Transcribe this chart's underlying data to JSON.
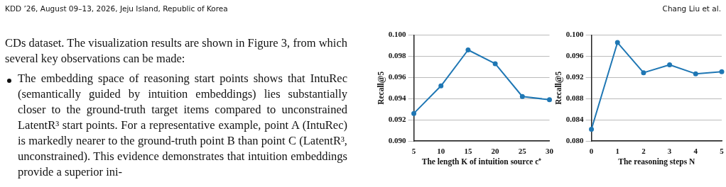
{
  "chart_data": [
    {
      "type": "other",
      "annotations": [
        "KDD ’26, August 09–13, 2026, Jeju Island, Republic of Korea",
        "Chang Liu et al.",
        "CDs dataset. The visualization results are shown in Figure 3, from which several key observations can be made:",
        "The embedding space of reasoning start points shows that IntuRec (semantically guided by intuition embeddings) lies substantially closer to the ground-truth target items compared to unconstrained LatentR³ start points. For a representative example, point A (IntuRec) is markedly nearer to the ground-truth point B than point C (LatentR³, unconstrained). This evidence demonstrates that intuition embeddings provide a superior ini-"
      ]
    },
    {
      "type": "line",
      "xlabel": "The length K of intuition source c⁺",
      "ylabel": "Recall@5",
      "categories": [
        "5",
        "10",
        "15",
        "20",
        "25",
        "30"
      ],
      "series": [
        {
          "color": "#1f77b4",
          "values": [
            0.0926,
            0.0952,
            0.0986,
            0.0973,
            0.0942,
            0.0939
          ]
        }
      ],
      "ylim": [
        0.09,
        0.1
      ],
      "yticks": [
        {
          "value": 0.09,
          "label": "0.090"
        },
        {
          "value": 0.092,
          "label": "0.092"
        },
        {
          "value": 0.094,
          "label": "0.094"
        },
        {
          "value": 0.096,
          "label": "0.096"
        },
        {
          "value": 0.098,
          "label": "0.098"
        },
        {
          "value": 0.1,
          "label": "0.100"
        }
      ],
      "grid": "y",
      "marker": "circle",
      "legend": false
    },
    {
      "type": "line",
      "xlabel": "The reasoning steps N",
      "ylabel": "Recall@5",
      "categories": [
        "0",
        "1",
        "2",
        "3",
        "4",
        "5"
      ],
      "series": [
        {
          "color": "#1f77b4",
          "values": [
            0.0822,
            0.0986,
            0.0929,
            0.0944,
            0.0927,
            0.0931
          ]
        }
      ],
      "ylim": [
        0.08,
        0.1
      ],
      "yticks": [
        {
          "value": 0.08,
          "label": "0.080"
        },
        {
          "value": 0.084,
          "label": "0.084"
        },
        {
          "value": 0.088,
          "label": "0.088"
        },
        {
          "value": 0.092,
          "label": "0.092"
        },
        {
          "value": 0.096,
          "label": "0.096"
        },
        {
          "value": 0.1,
          "label": "0.100"
        }
      ],
      "grid": "y",
      "marker": "circle",
      "legend": false
    }
  ]
}
